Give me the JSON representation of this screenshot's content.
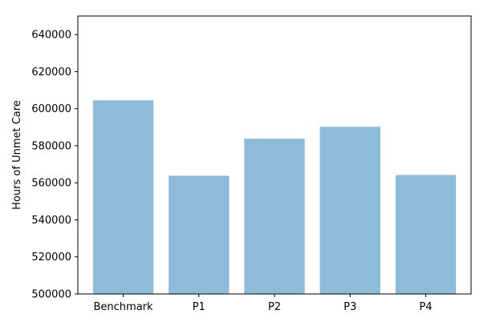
{
  "chart_data": {
    "type": "bar",
    "title": "",
    "xlabel": "",
    "ylabel": "Hours of Unmet Care",
    "categories": [
      "Benchmark",
      "P1",
      "P2",
      "P3",
      "P4"
    ],
    "values": [
      604500,
      563800,
      583800,
      590200,
      564200
    ],
    "ylim": [
      500000,
      650000
    ],
    "yticks": [
      500000,
      520000,
      540000,
      560000,
      580000,
      600000,
      620000,
      640000
    ],
    "ytick_labels": [
      "500000",
      "520000",
      "540000",
      "560000",
      "580000",
      "600000",
      "620000",
      "640000"
    ],
    "grid": false,
    "legend": "none",
    "bar_color": "#8fbbdb"
  }
}
